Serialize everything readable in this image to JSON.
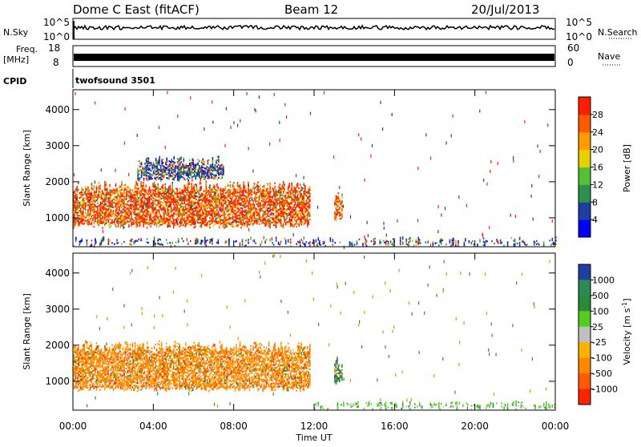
{
  "header": {
    "title": "Dome C East (fitACF)",
    "beam": "Beam 12",
    "date": "20/Jul/2013"
  },
  "sky_strip": {
    "left_label": "N.Sky",
    "right_label": "N.Search",
    "left_ticks": [
      "10^5",
      "10^0"
    ],
    "right_ticks": [
      "10^5",
      "10^0"
    ]
  },
  "freq_strip": {
    "left_label_top": "Freq.",
    "left_label_bottom": "[MHz]",
    "right_label": "Nave",
    "left_ticks": [
      "18",
      "8"
    ],
    "right_ticks": [
      "60",
      "0"
    ]
  },
  "cpid": {
    "label": "CPID",
    "value": "twofsound 3501"
  },
  "colors": {
    "power_scale": [
      "#0000ff",
      "#1f3fa0",
      "#2f8f4f",
      "#55c035",
      "#e8d000",
      "#ff9a00",
      "#ff5a00",
      "#ff1f00"
    ],
    "velocity_scale": [
      "#1f3fa0",
      "#2e8a55",
      "#2b8a3a",
      "#55cc22",
      "#c0c0c0",
      "#ffb000",
      "#ff8800",
      "#ff5a00",
      "#ff2200"
    ]
  },
  "chart_data": [
    {
      "type": "heatmap",
      "panel": "power",
      "xlabel": "",
      "ylabel": "Slant Range [km]",
      "x_ticks": [
        "00:00",
        "04:00",
        "08:00",
        "12:00",
        "16:00",
        "20:00",
        "00:00"
      ],
      "y_ticks": [
        "1000",
        "2000",
        "3000",
        "4000"
      ],
      "ylim": [
        200,
        4550
      ],
      "xlim_hours": [
        0,
        24
      ],
      "colorbar_label": "Power [dB]",
      "colorbar_ticks": [
        "4",
        "8",
        "12",
        "16",
        "20",
        "24",
        "28"
      ],
      "colorbar_range": [
        0,
        32
      ],
      "echo_regions": [
        {
          "t_start": 0.0,
          "t_end": 11.8,
          "range_low": 700,
          "range_high": 2000,
          "strength": "strong"
        },
        {
          "t_start": 3.2,
          "t_end": 7.5,
          "range_low": 2000,
          "range_high": 2700,
          "strength": "weak"
        },
        {
          "t_start": 13.0,
          "t_end": 13.4,
          "range_low": 900,
          "range_high": 1700,
          "strength": "strong"
        },
        {
          "t_start": 0.0,
          "t_end": 24.0,
          "range_low": 200,
          "range_high": 450,
          "strength": "weak"
        }
      ]
    },
    {
      "type": "heatmap",
      "panel": "velocity",
      "xlabel": "Time UT",
      "ylabel": "Slant Range [km]",
      "x_ticks": [
        "00:00",
        "04:00",
        "08:00",
        "12:00",
        "16:00",
        "20:00",
        "00:00"
      ],
      "y_ticks": [
        "1000",
        "2000",
        "3000",
        "4000"
      ],
      "ylim": [
        200,
        4550
      ],
      "xlim_hours": [
        0,
        24
      ],
      "colorbar_label": "Velocity [m s^-1]",
      "colorbar_ticks": [
        "1000",
        "500",
        "100",
        "25",
        "-25",
        "-100",
        "-500",
        "-1000"
      ],
      "echo_regions": [
        {
          "t_start": 0.0,
          "t_end": 11.8,
          "range_low": 700,
          "range_high": 2100,
          "dominant_velocity": -150
        },
        {
          "t_start": 13.0,
          "t_end": 13.4,
          "range_low": 900,
          "range_high": 1700,
          "dominant_velocity": 300
        },
        {
          "t_start": 12.0,
          "t_end": 24.0,
          "range_low": 200,
          "range_high": 450,
          "dominant_velocity": 50
        }
      ]
    }
  ]
}
